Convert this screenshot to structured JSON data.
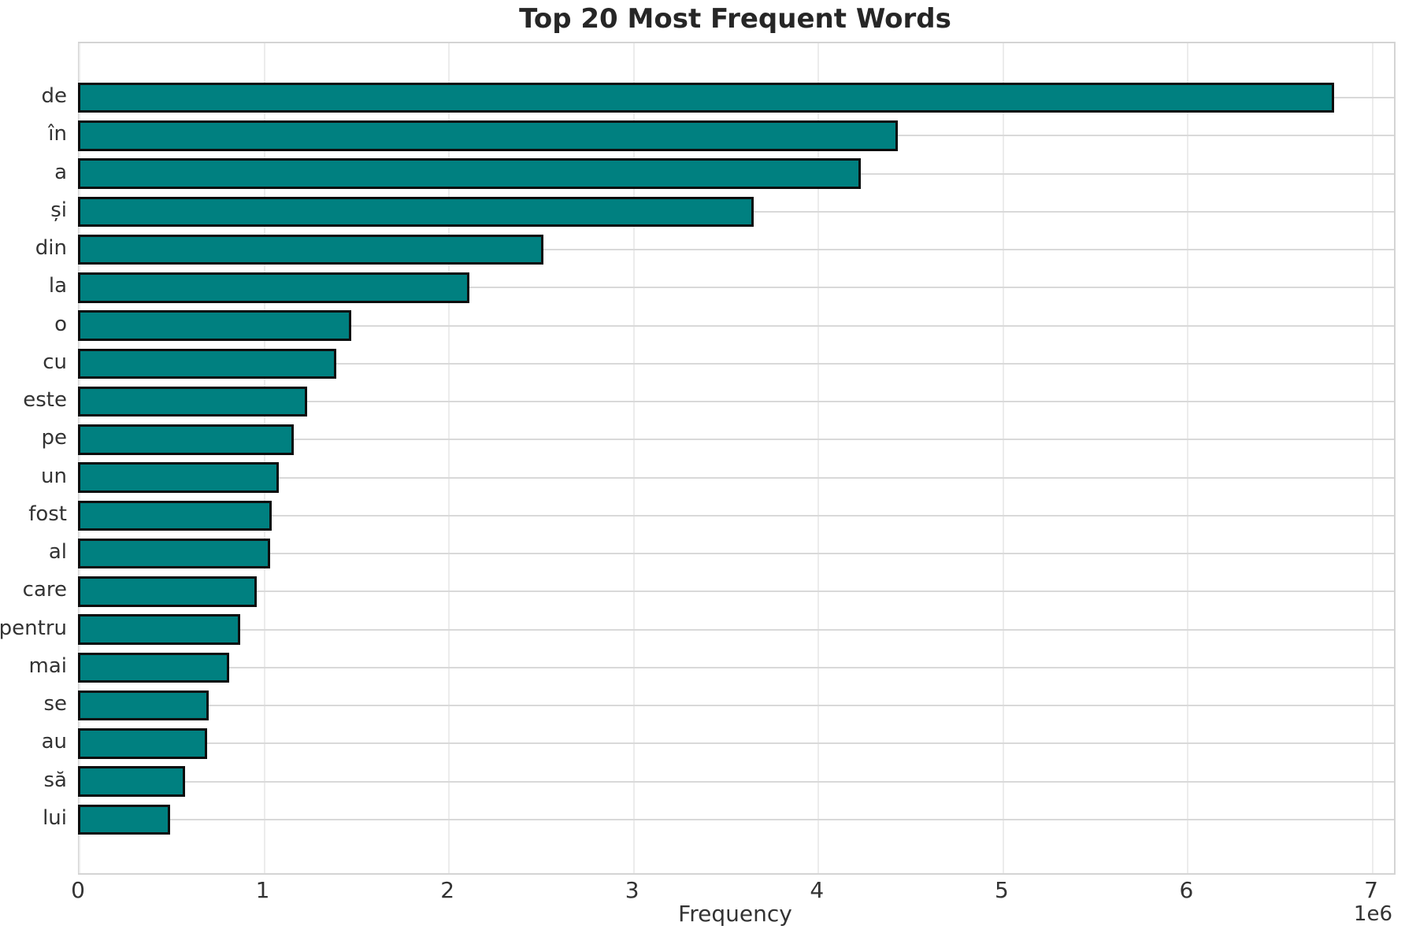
{
  "chart_data": {
    "type": "bar",
    "orientation": "horizontal",
    "title": "Top 20 Most Frequent Words",
    "xlabel": "Frequency",
    "ylabel": "",
    "x_offset_label": "1e6",
    "categories": [
      "de",
      "în",
      "a",
      "și",
      "din",
      "la",
      "o",
      "cu",
      "este",
      "pe",
      "un",
      "fost",
      "al",
      "care",
      "pentru",
      "mai",
      "se",
      "au",
      "să",
      "lui"
    ],
    "values": [
      6790000,
      4430000,
      4230000,
      3650000,
      2510000,
      2110000,
      1470000,
      1390000,
      1230000,
      1160000,
      1080000,
      1040000,
      1030000,
      960000,
      870000,
      810000,
      700000,
      690000,
      570000,
      490000
    ],
    "xlim": [
      0,
      7115000
    ],
    "xticks": [
      0,
      1,
      2,
      3,
      4,
      5,
      6,
      7
    ],
    "xtick_scale": 1000000,
    "grid": true,
    "legend": "none",
    "bar_color": "#008080",
    "bar_edge_color": "#0d0d0d",
    "grid_color_horizontal": "#d9d9d9",
    "grid_color_vertical": "#ececec",
    "spine_color": "#d4d4d4",
    "tick_color": "#333333",
    "title_color": "#262626",
    "background_color": "#ffffff"
  }
}
